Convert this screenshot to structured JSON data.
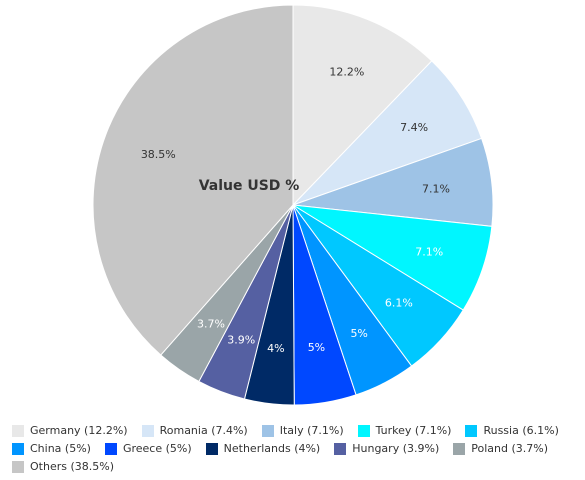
{
  "chart_data": {
    "type": "pie",
    "title": "Value USD %",
    "legend_position": "bottom",
    "slices": [
      {
        "label": "Germany (12.2%)",
        "name": "Germany",
        "value": 12.2,
        "data_label": "12.2%",
        "color": "#e8e8e8",
        "label_color": "#333333"
      },
      {
        "label": "Romania (7.4%)",
        "name": "Romania",
        "value": 7.4,
        "data_label": "7.4%",
        "color": "#d6e6f7",
        "label_color": "#333333"
      },
      {
        "label": "Italy (7.1%)",
        "name": "Italy",
        "value": 7.1,
        "data_label": "7.1%",
        "color": "#9ec3e6",
        "label_color": "#333333"
      },
      {
        "label": "Turkey (7.1%)",
        "name": "Turkey",
        "value": 7.1,
        "data_label": "7.1%",
        "color": "#00f6ff",
        "label_color": "#ffffff"
      },
      {
        "label": "Russia (6.1%)",
        "name": "Russia",
        "value": 6.1,
        "data_label": "6.1%",
        "color": "#00c8ff",
        "label_color": "#ffffff"
      },
      {
        "label": "China (5%)",
        "name": "China",
        "value": 5.0,
        "data_label": "5%",
        "color": "#0095ff",
        "label_color": "#ffffff"
      },
      {
        "label": "Greece (5%)",
        "name": "Greece",
        "value": 5.0,
        "data_label": "5%",
        "color": "#0048ff",
        "label_color": "#ffffff"
      },
      {
        "label": "Netherlands (4%)",
        "name": "Netherlands",
        "value": 4.0,
        "data_label": "4%",
        "color": "#002a66",
        "label_color": "#ffffff"
      },
      {
        "label": "Hungary (3.9%)",
        "name": "Hungary",
        "value": 3.9,
        "data_label": "3.9%",
        "color": "#5560a2",
        "label_color": "#ffffff"
      },
      {
        "label": "Poland (3.7%)",
        "name": "Poland",
        "value": 3.7,
        "data_label": "3.7%",
        "color": "#9aa5a8",
        "label_color": "#ffffff"
      },
      {
        "label": "Others (38.5%)",
        "name": "Others",
        "value": 38.5,
        "data_label": "38.5%",
        "color": "#c6c6c6",
        "label_color": "#333333"
      }
    ]
  }
}
